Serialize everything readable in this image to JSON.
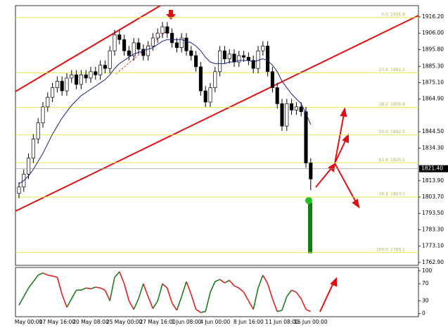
{
  "chart_data": {
    "type": "candlestick",
    "categories": [
      null,
      null,
      "May 00:00",
      null,
      null,
      null,
      null,
      null,
      "17 May 16:00",
      null,
      null,
      null,
      null,
      null,
      null,
      "20 May 08:00",
      null,
      null,
      null,
      null,
      null,
      null,
      "25 May 00:00",
      null,
      null,
      null,
      null,
      null,
      null,
      "27 May 16:00",
      null,
      null,
      null,
      null,
      null,
      "1 Jun 08:00",
      null,
      null,
      null,
      null,
      null,
      "4 Jun 00:00",
      null,
      null,
      null,
      null,
      null,
      null,
      "8 Jun 16:00",
      null,
      null,
      null,
      null,
      null,
      null,
      "11 Jun 08:00",
      null,
      null,
      null,
      null,
      null,
      "16 Jun 00:00"
    ],
    "candles": [
      [
        1806,
        1813,
        1803,
        1810
      ],
      [
        1810,
        1821,
        1807,
        1818
      ],
      [
        1818,
        1831,
        1815,
        1828
      ],
      [
        1828,
        1843,
        1825,
        1840
      ],
      [
        1840,
        1853,
        1837,
        1850
      ],
      [
        1850,
        1863,
        1847,
        1860
      ],
      [
        1860,
        1869,
        1857,
        1866
      ],
      [
        1866,
        1875,
        1863,
        1872
      ],
      [
        1872,
        1879,
        1869,
        1876
      ],
      [
        1876,
        1879,
        1867,
        1870
      ],
      [
        1870,
        1881,
        1867,
        1878
      ],
      [
        1878,
        1883,
        1875,
        1880
      ],
      [
        1880,
        1883,
        1871,
        1874
      ],
      [
        1874,
        1883,
        1871,
        1880
      ],
      [
        1880,
        1883,
        1875,
        1878
      ],
      [
        1878,
        1885,
        1875,
        1882
      ],
      [
        1882,
        1885,
        1877,
        1880
      ],
      [
        1880,
        1889,
        1877,
        1886
      ],
      [
        1886,
        1889,
        1881,
        1884
      ],
      [
        1884,
        1898,
        1881,
        1895
      ],
      [
        1895,
        1908,
        1892,
        1905
      ],
      [
        1905,
        1908,
        1899,
        1902
      ],
      [
        1902,
        1905,
        1892,
        1895
      ],
      [
        1895,
        1898,
        1889,
        1892
      ],
      [
        1892,
        1903,
        1889,
        1900
      ],
      [
        1900,
        1903,
        1893,
        1896
      ],
      [
        1896,
        1899,
        1889,
        1892
      ],
      [
        1892,
        1901,
        1889,
        1898
      ],
      [
        1898,
        1906,
        1895,
        1903
      ],
      [
        1903,
        1909,
        1900,
        1906
      ],
      [
        1906,
        1913,
        1903,
        1910
      ],
      [
        1910,
        1913,
        1903,
        1906
      ],
      [
        1906,
        1909,
        1897,
        1900
      ],
      [
        1900,
        1903,
        1894,
        1897
      ],
      [
        1897,
        1906,
        1894,
        1903
      ],
      [
        1903,
        1906,
        1892,
        1895
      ],
      [
        1895,
        1898,
        1889,
        1892
      ],
      [
        1892,
        1895,
        1882,
        1885
      ],
      [
        1885,
        1888,
        1867,
        1870
      ],
      [
        1870,
        1873,
        1860,
        1863
      ],
      [
        1863,
        1875,
        1860,
        1872
      ],
      [
        1872,
        1885,
        1869,
        1882
      ],
      [
        1882,
        1898,
        1879,
        1895
      ],
      [
        1895,
        1898,
        1887,
        1890
      ],
      [
        1890,
        1896,
        1887,
        1893
      ],
      [
        1893,
        1896,
        1885,
        1888
      ],
      [
        1888,
        1895,
        1885,
        1892
      ],
      [
        1892,
        1895,
        1888,
        1891
      ],
      [
        1891,
        1894,
        1886,
        1889
      ],
      [
        1889,
        1892,
        1881,
        1884
      ],
      [
        1884,
        1898,
        1881,
        1895
      ],
      [
        1895,
        1901,
        1892,
        1898
      ],
      [
        1898,
        1901,
        1879,
        1882
      ],
      [
        1882,
        1885,
        1869,
        1872
      ],
      [
        1872,
        1875,
        1859,
        1862
      ],
      [
        1862,
        1865,
        1845,
        1848
      ],
      [
        1848,
        1865,
        1845,
        1862
      ],
      [
        1862,
        1865,
        1855,
        1858
      ],
      [
        1858,
        1863,
        1855,
        1860
      ],
      [
        1860,
        1863,
        1854,
        1857
      ],
      [
        1857,
        1860,
        1822,
        1825
      ],
      [
        1825,
        1828,
        1808,
        1815
      ]
    ],
    "ylim": [
      1761.1,
      1923.2
    ],
    "yticks": [
      {
        "value": 1916.2,
        "label": "1916.20"
      },
      {
        "value": 1906,
        "label": "1906.00"
      },
      {
        "value": 1895.8,
        "label": "1895.80"
      },
      {
        "value": 1885.3,
        "label": "1885.30"
      },
      {
        "value": 1875.1,
        "label": "1875.10"
      },
      {
        "value": 1864.9,
        "label": "1864.90"
      },
      {
        "value": 1844.5,
        "label": "1844.50"
      },
      {
        "value": 1834.3,
        "label": "1834.30"
      },
      {
        "value": 1813.9,
        "label": "1813.90"
      },
      {
        "value": 1803.7,
        "label": "1803.70"
      },
      {
        "value": 1793.5,
        "label": "1793.50"
      },
      {
        "value": 1783.3,
        "label": "1783.30"
      },
      {
        "value": 1773.1,
        "label": "1773.10"
      },
      {
        "value": 1762.9,
        "label": "1762.90"
      }
    ],
    "up_color": "#ffffff",
    "down_color": "#000000",
    "wick_color": "#000000",
    "ma": {
      "color": "#1a237e",
      "values": [
        1812,
        1814,
        1817,
        1821,
        1826,
        1831,
        1837,
        1843,
        1848,
        1853,
        1857,
        1861,
        1864,
        1867,
        1869,
        1871,
        1873,
        1875,
        1877,
        1880,
        1884,
        1887,
        1889,
        1891,
        1893,
        1894,
        1895,
        1896,
        1897,
        1899,
        1901,
        1902,
        1902,
        1902,
        1902,
        1901,
        1900,
        1898,
        1895,
        1891,
        1888,
        1887,
        1887,
        1887,
        1888,
        1888,
        1889,
        1889,
        1889,
        1888,
        1889,
        1890,
        1889,
        1886,
        1882,
        1876,
        1872,
        1868,
        1865,
        1862,
        1856,
        1849
      ]
    },
    "current_price": {
      "value": 1821.4,
      "label": "1821.40"
    },
    "fib_color": "#e6e64a",
    "fib_levels": [
      {
        "level": "0.0",
        "price": 1915.8
      },
      {
        "level": "23.6",
        "price": 1881.2
      },
      {
        "level": "38.2",
        "price": 1859.8
      },
      {
        "level": "50.0",
        "price": 1842.5
      },
      {
        "level": "61.8",
        "price": 1825.1
      },
      {
        "level": "76.4",
        "price": 1803.7
      },
      {
        "level": "100.0",
        "price": 1769.1
      }
    ],
    "oscillator": {
      "type": "line",
      "values": [
        20,
        40,
        60,
        75,
        90,
        95,
        90,
        88,
        85,
        45,
        15,
        35,
        55,
        55,
        60,
        58,
        62,
        60,
        55,
        30,
        85,
        98,
        70,
        30,
        10,
        35,
        70,
        40,
        12,
        30,
        70,
        60,
        25,
        8,
        40,
        75,
        45,
        10,
        3,
        5,
        50,
        75,
        80,
        72,
        78,
        65,
        60,
        50,
        30,
        10,
        60,
        90,
        70,
        35,
        5,
        8,
        40,
        55,
        50,
        35,
        10,
        5
      ],
      "ylim": [
        -7,
        108
      ],
      "yticks": [
        100,
        70,
        30,
        0
      ],
      "up_color": "#1f7a1f",
      "down_color": "#e02020"
    }
  }
}
